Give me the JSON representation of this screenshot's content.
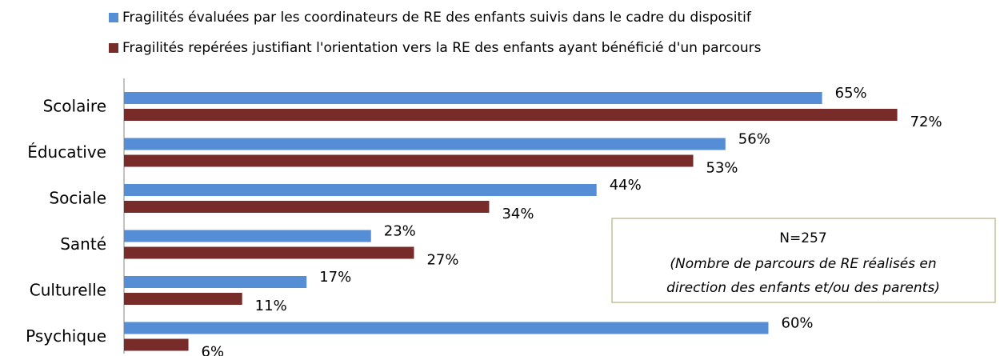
{
  "chart_data": {
    "type": "hbar",
    "categories": [
      "Scolaire",
      "Éducative",
      "Sociale",
      "Santé",
      "Culturelle",
      "Psychique"
    ],
    "series": [
      {
        "name": "Fragilités évaluées par les coordinateurs de RE des enfants suivis dans le cadre du dispositif",
        "color": "#558ed5",
        "values": [
          65,
          56,
          44,
          23,
          17,
          60
        ],
        "value_labels": [
          "65%",
          "56%",
          "44%",
          "23%",
          "17%",
          "60%"
        ]
      },
      {
        "name": "Fragilités repérées justifiant l'orientation vers la RE des enfants ayant bénéficié d'un parcours",
        "color": "#772c2a",
        "values": [
          72,
          53,
          34,
          27,
          11,
          6
        ],
        "value_labels": [
          "72%",
          "53%",
          "34%",
          "27%",
          "11%",
          "6%"
        ]
      }
    ],
    "xlim": [
      0,
      80
    ],
    "annotation": [
      "N=257",
      "(Nombre de parcours de RE réalisés en",
      "direction des enfants et/ou des parents)"
    ]
  }
}
